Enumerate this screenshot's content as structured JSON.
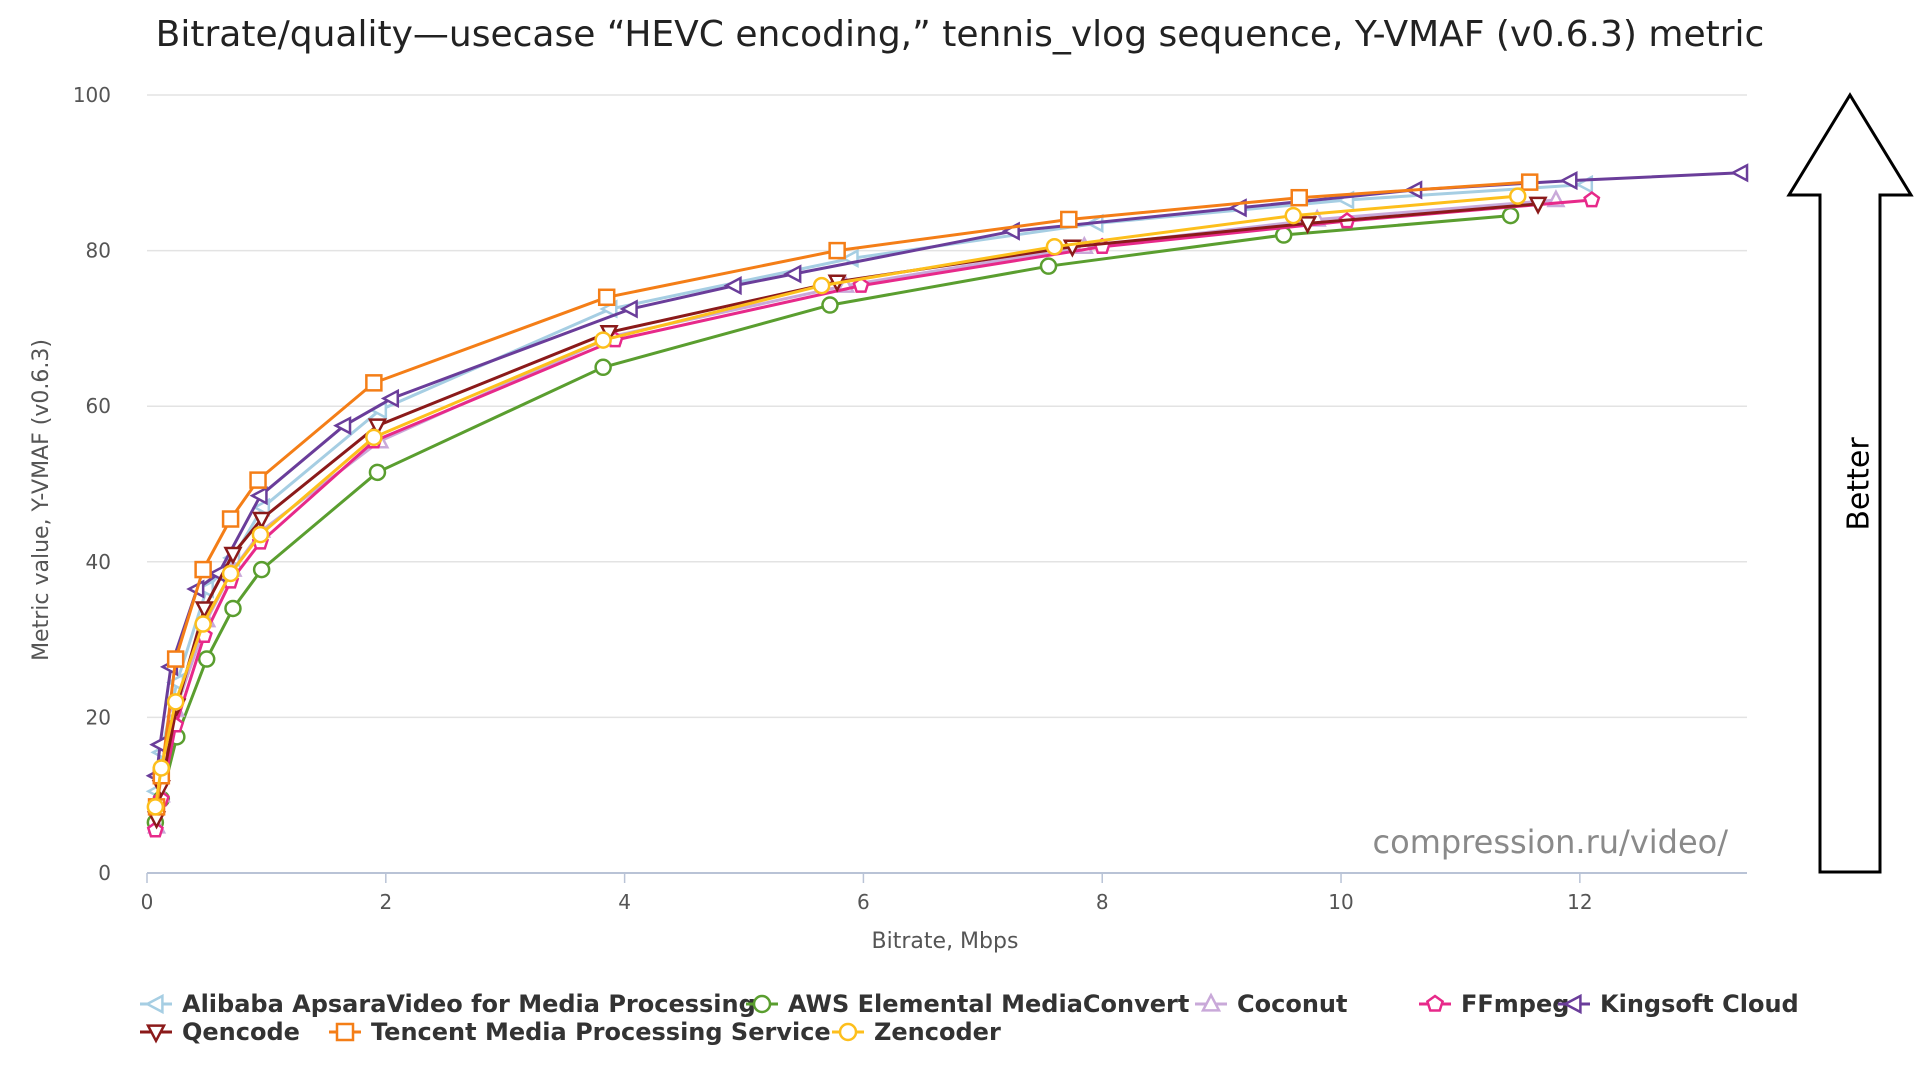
{
  "chart_data": {
    "type": "line",
    "title": "Bitrate/quality—usecase “HEVC encoding,” tennis_vlog sequence, Y-VMAF (v0.6.3) metric",
    "xlabel": "Bitrate, Mbps",
    "ylabel": "Metric value, Y-VMAF (v0.6.3)",
    "xlim": [
      0,
      13.4
    ],
    "ylim": [
      0,
      100
    ],
    "x_ticks": [
      0,
      2,
      4,
      6,
      8,
      10,
      12
    ],
    "y_ticks": [
      0,
      20,
      40,
      60,
      80,
      100
    ],
    "grid": "horizontal",
    "legend_position": "bottom",
    "watermark": "compression.ru/video/",
    "annotation": "Better",
    "series": [
      {
        "name": "Alibaba ApsaraVideo for Media Processing",
        "color": "#a6cee3",
        "marker": "triangle-left",
        "x": [
          0.08,
          0.12,
          0.25,
          0.5,
          0.72,
          0.97,
          1.95,
          3.88,
          5.9,
          7.95,
          10.05,
          12.05
        ],
        "y": [
          10.5,
          15.5,
          24.5,
          36.5,
          40.5,
          47,
          59.5,
          72.5,
          79,
          83.5,
          86.5,
          88.5
        ]
      },
      {
        "name": "AWS Elemental MediaConvert",
        "color": "#5a9e2f",
        "marker": "circle",
        "x": [
          0.07,
          0.12,
          0.25,
          0.5,
          0.72,
          0.96,
          1.93,
          3.82,
          5.72,
          7.55,
          9.52,
          11.42
        ],
        "y": [
          6.5,
          9.5,
          17.5,
          27.5,
          34,
          39,
          51.5,
          65,
          73,
          78,
          82,
          84.5
        ]
      },
      {
        "name": "Coconut",
        "color": "#c9a9d9",
        "marker": "triangle-up",
        "x": [
          0.08,
          0.12,
          0.24,
          0.5,
          0.72,
          0.96,
          1.95,
          3.9,
          5.85,
          7.85,
          9.8,
          11.8
        ],
        "y": [
          6,
          10,
          21,
          32.5,
          39,
          44,
          55.5,
          69,
          75.5,
          80.5,
          84,
          86.5
        ]
      },
      {
        "name": "FFmpeg",
        "color": "#e7298a",
        "marker": "pentagon",
        "x": [
          0.07,
          0.12,
          0.24,
          0.48,
          0.7,
          0.95,
          1.9,
          3.92,
          5.98,
          8.0,
          10.05,
          12.1
        ],
        "y": [
          5.5,
          9.5,
          19,
          30.5,
          37.5,
          42.5,
          55.5,
          68.5,
          75.5,
          80.5,
          83.8,
          86.5
        ]
      },
      {
        "name": "Kingsoft Cloud",
        "color": "#6a3d9a",
        "marker": "triangle-left",
        "x": [
          0.08,
          0.11,
          0.2,
          0.42,
          0.6,
          0.95,
          1.65,
          2.05,
          4.05,
          4.92,
          5.42,
          7.25,
          9.15,
          10.62,
          11.92,
          13.35
        ],
        "y": [
          12.5,
          16.5,
          26.5,
          36.5,
          38.5,
          48.5,
          57.5,
          61,
          72.5,
          75.5,
          77,
          82.5,
          85.5,
          87.8,
          89,
          90
        ]
      },
      {
        "name": "Qencode",
        "color": "#8b1a1a",
        "marker": "triangle-down",
        "x": [
          0.08,
          0.12,
          0.25,
          0.48,
          0.72,
          0.96,
          1.93,
          3.87,
          5.78,
          7.75,
          9.72,
          11.65
        ],
        "y": [
          7,
          11,
          21.5,
          34,
          41,
          45.5,
          57.5,
          69.5,
          76,
          80.5,
          83.5,
          86
        ]
      },
      {
        "name": "Tencent Media Processing Service",
        "color": "#f47e17",
        "marker": "square",
        "x": [
          0.08,
          0.12,
          0.24,
          0.47,
          0.7,
          0.93,
          1.9,
          3.85,
          5.78,
          7.72,
          9.65,
          11.58
        ],
        "y": [
          8.5,
          12.5,
          27.5,
          39,
          45.5,
          50.5,
          63,
          74,
          80,
          84,
          86.8,
          88.8
        ]
      },
      {
        "name": "Zencoder",
        "color": "#fdbf1c",
        "marker": "circle",
        "x": [
          0.07,
          0.12,
          0.24,
          0.47,
          0.7,
          0.95,
          1.9,
          3.82,
          5.65,
          7.6,
          9.6,
          11.48
        ],
        "y": [
          8.5,
          13.5,
          22,
          32,
          38.5,
          43.5,
          56,
          68.5,
          75.5,
          80.5,
          84.5,
          87
        ]
      }
    ]
  }
}
